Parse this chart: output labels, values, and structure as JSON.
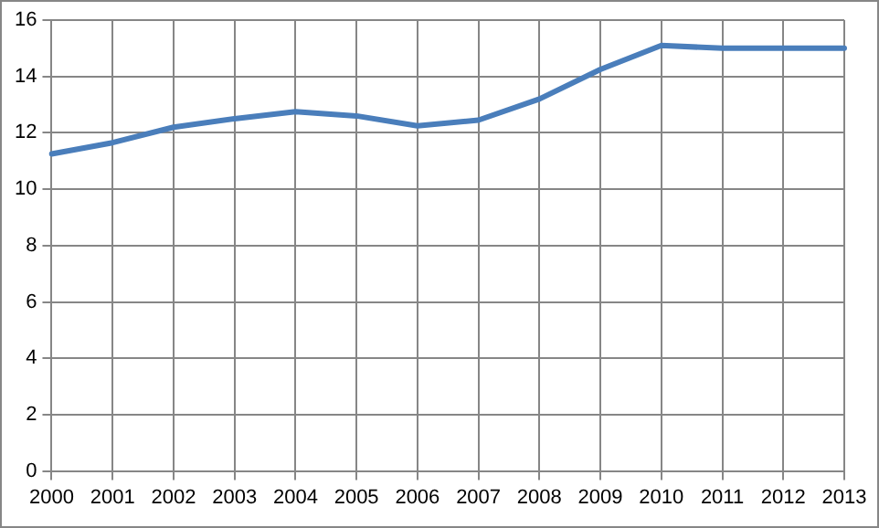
{
  "chart_data": {
    "type": "line",
    "categories": [
      "2000",
      "2001",
      "2002",
      "2003",
      "2004",
      "2005",
      "2006",
      "2007",
      "2008",
      "2009",
      "2010",
      "2011",
      "2012",
      "2013"
    ],
    "series": [
      {
        "color": "#4a7ebb",
        "values": [
          11.25,
          11.65,
          12.2,
          12.5,
          12.75,
          12.6,
          12.25,
          12.45,
          13.2,
          14.25,
          15.1,
          15.0,
          15.0,
          15.0
        ]
      }
    ],
    "ylim": [
      0,
      16
    ],
    "yticks": [
      0,
      2,
      4,
      6,
      8,
      10,
      12,
      14,
      16
    ],
    "grid": true,
    "legend": false,
    "marker": "none",
    "line_style": "solid"
  }
}
